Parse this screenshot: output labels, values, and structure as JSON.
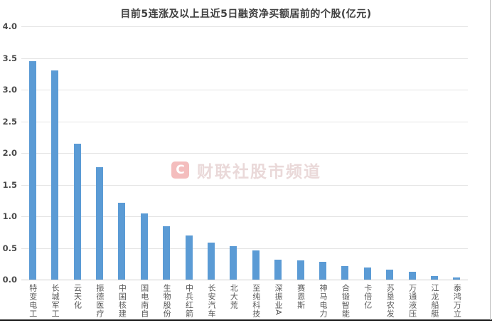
{
  "watermark": {
    "logo_letter": "C",
    "text": "财联社股市频道"
  },
  "chart_data": {
    "type": "bar",
    "title": "目前5连涨及以上且近5日融资净买额居前的个股(亿元)",
    "categories": [
      "特变电工",
      "长城军工",
      "云天化",
      "振德医疗",
      "中国核建",
      "国电南自",
      "生物股份",
      "中兵红箭",
      "长安汽车",
      "北大荒",
      "至纯科技",
      "深振业A",
      "赛恩斯",
      "神马电力",
      "合锻智能",
      "卡倍亿",
      "苏垦农发",
      "万通液压",
      "江龙船艇",
      "泰鸿万立"
    ],
    "values": [
      3.45,
      3.3,
      2.15,
      1.78,
      1.21,
      1.04,
      0.84,
      0.7,
      0.59,
      0.53,
      0.46,
      0.31,
      0.3,
      0.28,
      0.21,
      0.19,
      0.16,
      0.12,
      0.06,
      0.03
    ],
    "xlabel": "",
    "ylabel": "",
    "ylim": [
      0,
      4.0
    ],
    "yticks": [
      "4.0",
      "3.5",
      "3.0",
      "2.5",
      "2.0",
      "1.5",
      "1.0",
      "0.5",
      "0.0"
    ],
    "grid": true,
    "legend": false,
    "bar_color": "#5B9BD5",
    "gridline_color": "#e4e4e4",
    "title_color": "#3f3f3f",
    "axis_label_color": "#595959"
  }
}
